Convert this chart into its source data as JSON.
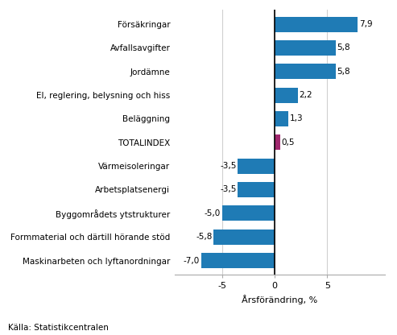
{
  "categories": [
    "Maskinarbeten och lyftanordningar",
    "Formmaterial och därtill hörande stöd",
    "Byggområdets ytstrukturer",
    "Arbetsplatsenergi",
    "Värmeisoleringar",
    "TOTALINDEX",
    "Beläggning",
    "El, reglering, belysning och hiss",
    "Jordämne",
    "Avfallsavgifter",
    "Försäkringar"
  ],
  "values": [
    -7.0,
    -5.8,
    -5.0,
    -3.5,
    -3.5,
    0.5,
    1.3,
    2.2,
    5.8,
    5.8,
    7.9
  ],
  "bar_colors": [
    "#1f7bb5",
    "#1f7bb5",
    "#1f7bb5",
    "#1f7bb5",
    "#1f7bb5",
    "#a0286e",
    "#1f7bb5",
    "#1f7bb5",
    "#1f7bb5",
    "#1f7bb5",
    "#1f7bb5"
  ],
  "xlabel": "Årsförändring, %",
  "xlim": [
    -9.5,
    10.5
  ],
  "xticks": [
    -5,
    0,
    5
  ],
  "source": "Källa: Statistikcentralen",
  "value_labels": [
    "-7,0",
    "-5,8",
    "-5,0",
    "-3,5",
    "-3,5",
    "0,5",
    "1,3",
    "2,2",
    "5,8",
    "5,8",
    "7,9"
  ],
  "background_color": "#ffffff",
  "grid_color": "#d0d0d0",
  "bar_height": 0.65
}
